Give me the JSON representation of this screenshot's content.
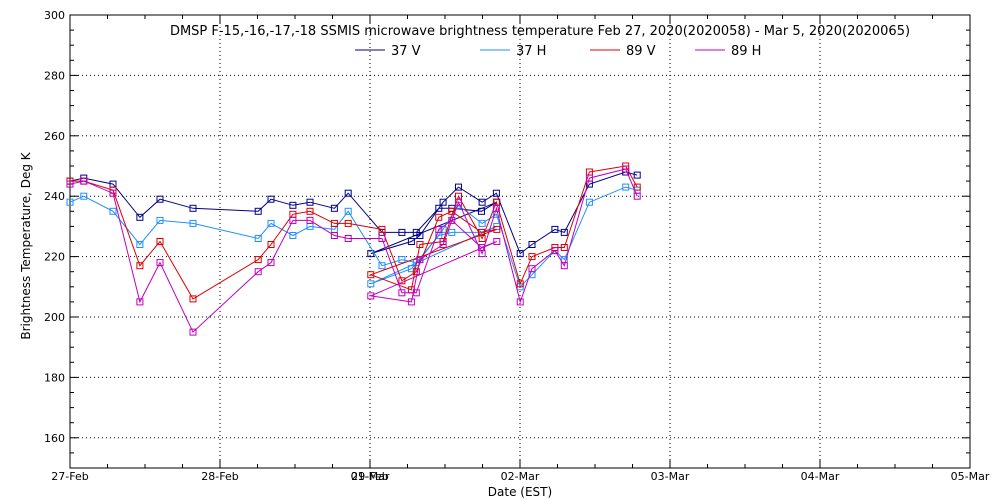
{
  "chart_data": {
    "type": "line",
    "title": "DMSP F-15,-16,-17,-18 SSMIS microwave brightness temperature Feb 27, 2020(2020058) - Mar  5, 2020(2020065)",
    "xlabel": "Date (EST)",
    "ylabel": "Brightness Temperature, Deg K",
    "x_unit": "date (fractional day, starting 27-Feb)",
    "xlim": [
      "27-Feb 00:00",
      "05-Mar 00:00"
    ],
    "ylim": [
      150,
      300
    ],
    "x_tick_labels": [
      "27-Feb",
      "28-Feb",
      "29-Feb",
      "01-Mar",
      "02-Mar",
      "03-Mar",
      "04-Mar",
      "05-Mar"
    ],
    "y_tick_labels": [
      "160",
      "180",
      "200",
      "220",
      "240",
      "260",
      "280",
      "300"
    ],
    "grid": true,
    "legend_position": "top-center",
    "marker": "square",
    "series": [
      {
        "name": "37 V",
        "color": "#00008b",
        "x": [
          "27-Feb 00:00",
          "27-Feb 02:12",
          "27-Feb 06:53",
          "27-Feb 11:11",
          "27-Feb 14:24",
          "27-Feb 19:41",
          "28-Feb 06:07",
          "28-Feb 08:10",
          "28-Feb 11:40",
          "28-Feb 14:24",
          "28-Feb 18:18",
          "28-Feb 20:31",
          "29-Feb 01:55",
          "29-Feb 05:06",
          "29-Feb 07:24",
          "29-Feb 11:00",
          "29-Feb 13:05",
          "29-Feb 17:50",
          "29-Feb 20:17",
          "01-Mar 00:08",
          "01-Mar 06:37",
          "01-Mar 07:59",
          "01-Mar 11:42",
          "01-Mar 14:10",
          "01-Mar 17:56",
          "01-Mar 20:13",
          "02-Mar 00:02",
          "02-Mar 01:55",
          "02-Mar 05:35",
          "02-Mar 07:05",
          "02-Mar 11:06",
          "02-Mar 16:55",
          "02-Mar 18:45"
        ],
        "values": [
          245,
          246,
          244,
          233,
          239,
          236,
          235,
          239,
          237,
          238,
          236,
          241,
          228,
          228,
          228,
          236,
          236,
          235,
          238,
          221,
          225,
          227,
          238,
          243,
          238,
          241,
          221,
          224,
          229,
          228,
          244,
          248,
          247
        ]
      },
      {
        "name": "37 H",
        "color": "#1e90ff",
        "x": [
          "27-Feb 00:00",
          "27-Feb 02:12",
          "27-Feb 06:53",
          "27-Feb 11:11",
          "27-Feb 14:24",
          "27-Feb 19:41",
          "28-Feb 06:07",
          "28-Feb 08:10",
          "28-Feb 11:40",
          "28-Feb 14:24",
          "28-Feb 18:18",
          "28-Feb 20:31",
          "29-Feb 01:55",
          "29-Feb 05:06",
          "29-Feb 07:24",
          "29-Feb 11:00",
          "29-Feb 13:05",
          "29-Feb 17:50",
          "29-Feb 20:17",
          "01-Mar 00:08",
          "01-Mar 06:37",
          "01-Mar 07:59",
          "01-Mar 11:42",
          "01-Mar 14:10",
          "01-Mar 17:56",
          "01-Mar 20:13",
          "02-Mar 00:02",
          "02-Mar 01:55",
          "02-Mar 05:35",
          "02-Mar 07:05",
          "02-Mar 11:06",
          "02-Mar 16:55",
          "02-Mar 18:45"
        ],
        "values": [
          238,
          240,
          235,
          224,
          232,
          231,
          226,
          231,
          227,
          230,
          229,
          235,
          217,
          219,
          218,
          227,
          228,
          228,
          230,
          211,
          216,
          219,
          229,
          237,
          231,
          234,
          210,
          214,
          222,
          219,
          238,
          243,
          242
        ]
      },
      {
        "name": "89 V",
        "color": "#dd0000",
        "x": [
          "27-Feb 00:00",
          "27-Feb 02:12",
          "27-Feb 06:53",
          "27-Feb 11:11",
          "27-Feb 14:24",
          "27-Feb 19:41",
          "28-Feb 06:07",
          "28-Feb 08:10",
          "28-Feb 11:40",
          "28-Feb 14:24",
          "28-Feb 18:18",
          "28-Feb 20:31",
          "29-Feb 01:55",
          "29-Feb 05:06",
          "29-Feb 07:24",
          "29-Feb 11:00",
          "29-Feb 13:05",
          "29-Feb 17:50",
          "29-Feb 20:17",
          "01-Mar 00:08",
          "01-Mar 06:37",
          "01-Mar 07:59",
          "01-Mar 11:42",
          "01-Mar 14:10",
          "01-Mar 17:56",
          "01-Mar 20:13",
          "02-Mar 00:02",
          "02-Mar 01:55",
          "02-Mar 05:35",
          "02-Mar 07:05",
          "02-Mar 11:06",
          "02-Mar 16:55",
          "02-Mar 18:45"
        ],
        "values": [
          245,
          245,
          242,
          217,
          225,
          206,
          219,
          224,
          234,
          235,
          231,
          231,
          229,
          212,
          215,
          233,
          235,
          228,
          229,
          214,
          209,
          224,
          225,
          240,
          226,
          238,
          211,
          220,
          223,
          223,
          248,
          250,
          243
        ]
      },
      {
        "name": "89 H",
        "color": "#c000c0",
        "x": [
          "27-Feb 00:00",
          "27-Feb 02:12",
          "27-Feb 06:53",
          "27-Feb 11:11",
          "27-Feb 14:24",
          "27-Feb 19:41",
          "28-Feb 06:07",
          "28-Feb 08:10",
          "28-Feb 11:40",
          "28-Feb 14:24",
          "28-Feb 18:18",
          "28-Feb 20:31",
          "29-Feb 01:55",
          "29-Feb 05:06",
          "29-Feb 07:24",
          "29-Feb 11:00",
          "29-Feb 13:05",
          "29-Feb 17:50",
          "29-Feb 20:17",
          "01-Mar 00:08",
          "01-Mar 06:37",
          "01-Mar 07:59",
          "01-Mar 11:42",
          "01-Mar 14:10",
          "01-Mar 17:56",
          "01-Mar 20:13",
          "02-Mar 00:02",
          "02-Mar 01:55",
          "02-Mar 05:35",
          "02-Mar 07:05",
          "02-Mar 11:06",
          "02-Mar 16:55",
          "02-Mar 18:45"
        ],
        "values": [
          244,
          245,
          241,
          205,
          218,
          195,
          215,
          218,
          232,
          232,
          227,
          226,
          226,
          208,
          208,
          229,
          232,
          223,
          225,
          207,
          205,
          219,
          224,
          238,
          221,
          236,
          205,
          216,
          222,
          217,
          246,
          249,
          240
        ]
      }
    ]
  }
}
